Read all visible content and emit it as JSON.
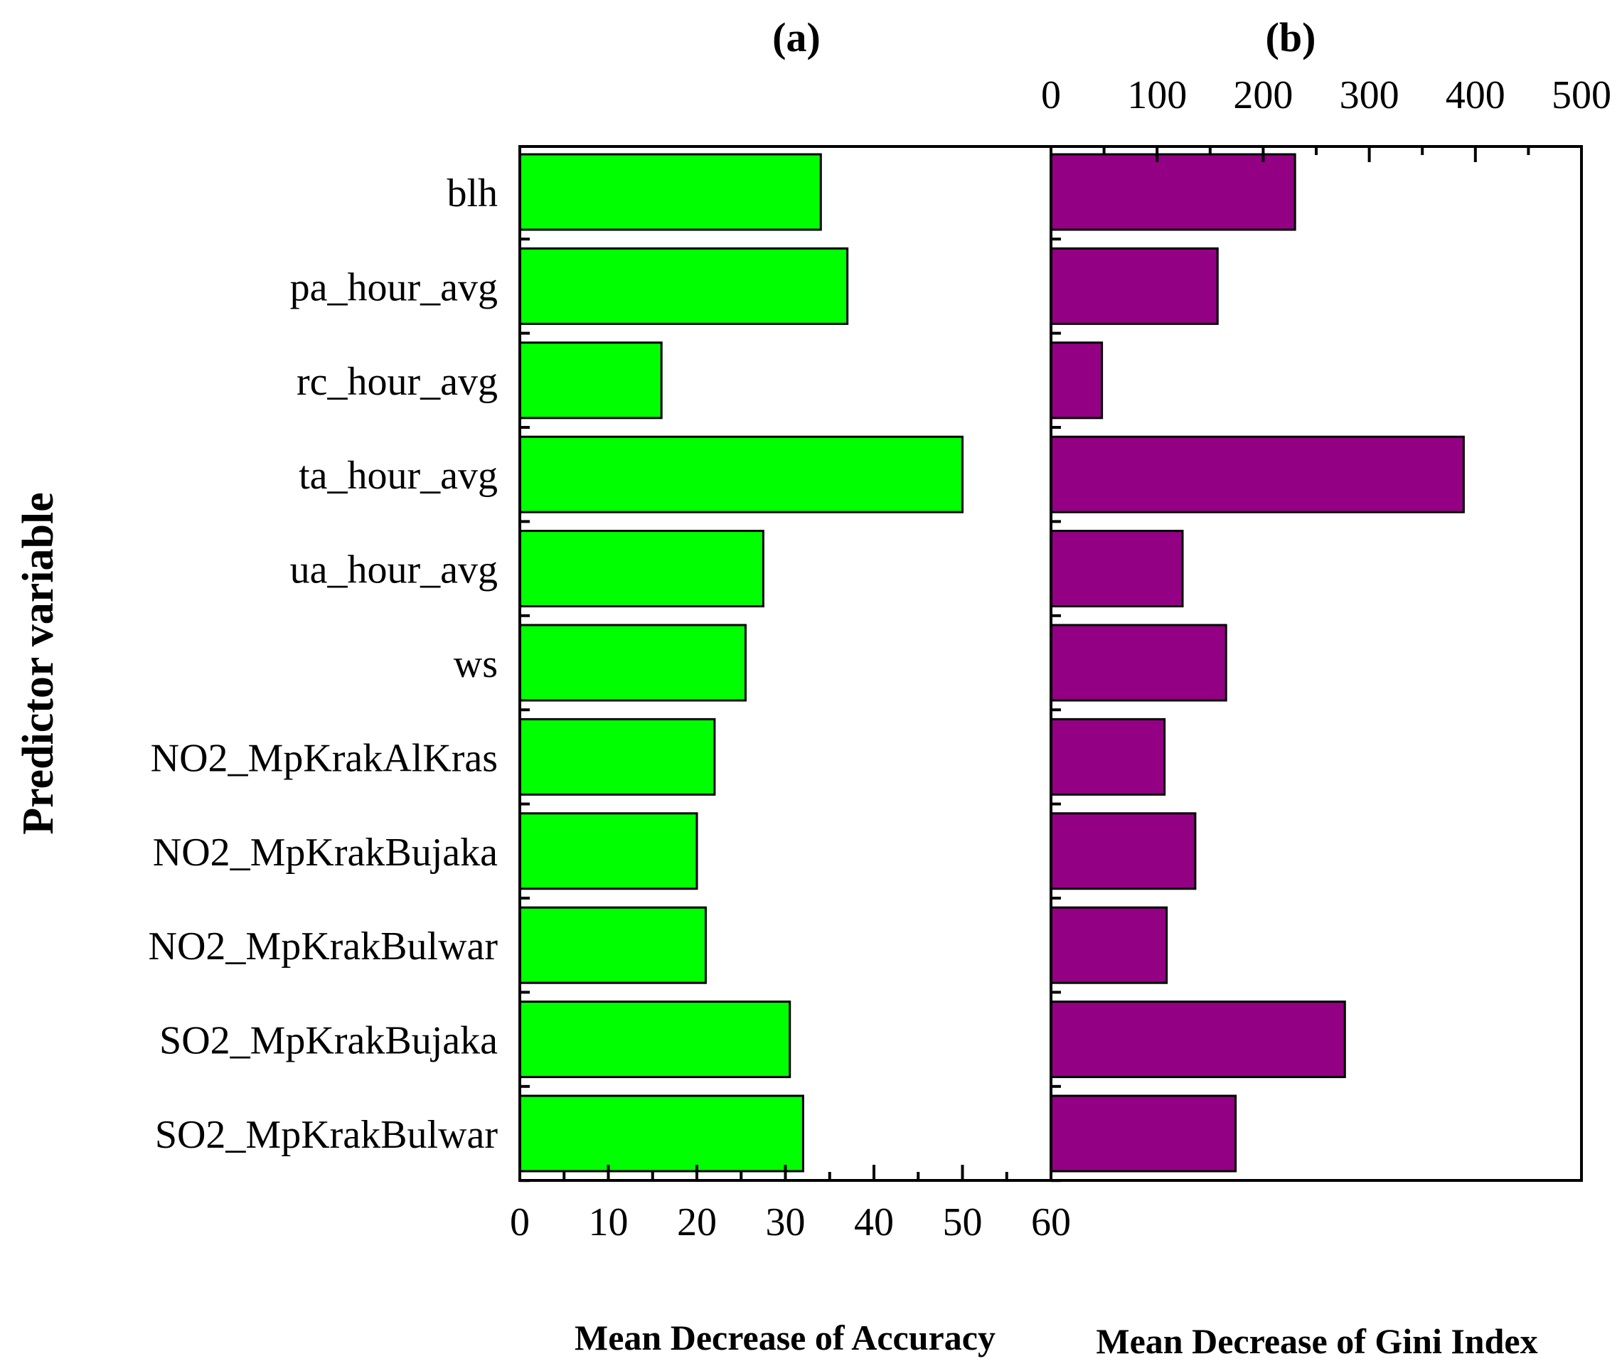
{
  "chart_data": {
    "type": "bar",
    "orientation": "horizontal",
    "ylabel": "Predictor variable",
    "categories": [
      "blh",
      "pa_hour_avg",
      "rc_hour_avg",
      "ta_hour_avg",
      "ua_hour_avg",
      "ws",
      "NO2_MpKrakAlKras",
      "NO2_MpKrakBujaka",
      "NO2_MpKrakBulwar",
      "SO2_MpKrakBujaka",
      "SO2_MpKrakBulwar"
    ],
    "panels": [
      {
        "id": "a",
        "title": "(a)",
        "xlabel": "Mean Decrease of Accuracy",
        "xlim": [
          0,
          60
        ],
        "ticks": [
          0,
          10,
          20,
          30,
          40,
          50,
          60
        ],
        "tick_labels": [
          "0",
          "10",
          "20",
          "30",
          "40",
          "50",
          "60"
        ],
        "tick_position": "bottom",
        "color": "#00ff00",
        "values": [
          34,
          37,
          16,
          50,
          27.5,
          25.5,
          22,
          20,
          21,
          30.5,
          32
        ]
      },
      {
        "id": "b",
        "title": "(b)",
        "xlabel": "Mean Decrease of Gini Index",
        "xlim": [
          0,
          500
        ],
        "ticks": [
          0,
          100,
          200,
          300,
          400,
          500
        ],
        "tick_labels": [
          "0",
          "100",
          "200",
          "300",
          "400",
          "500"
        ],
        "tick_position": "top",
        "color": "#940084",
        "values": [
          230,
          157,
          48,
          389,
          124,
          165,
          107,
          136,
          109,
          277,
          174
        ]
      }
    ]
  }
}
